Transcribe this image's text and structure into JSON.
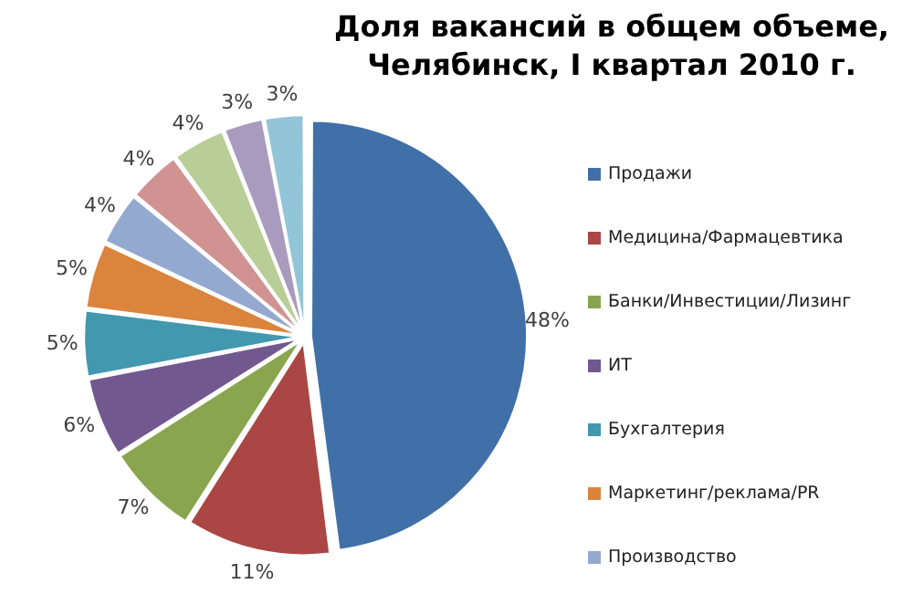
{
  "chart_data": {
    "type": "pie",
    "title": "Доля вакансий в общем объеме, Челябинск, I квартал 2010 г.",
    "categories": [
      "Продажи",
      "Медицина/Фармацевтика",
      "Банки/Инвестиции/Лизинг",
      "ИТ",
      "Бухгалтерия",
      "Маркетинг/реклама/PR",
      "Производство",
      null,
      null,
      null,
      null
    ],
    "values": [
      48,
      11,
      7,
      6,
      5,
      5,
      4,
      4,
      4,
      3,
      3
    ],
    "colors": [
      "#4170a8",
      "#aa4644",
      "#89a54e",
      "#71588f",
      "#4198af",
      "#db843d",
      "#93a9cf",
      "#d19392",
      "#b9cd96",
      "#a99bbd",
      "#92c5d7"
    ],
    "value_labels": [
      "48%",
      "11%",
      "7%",
      "6%",
      "5%",
      "5%",
      "4%",
      "4%",
      "4%",
      "3%",
      "3%"
    ],
    "legend": "right"
  }
}
